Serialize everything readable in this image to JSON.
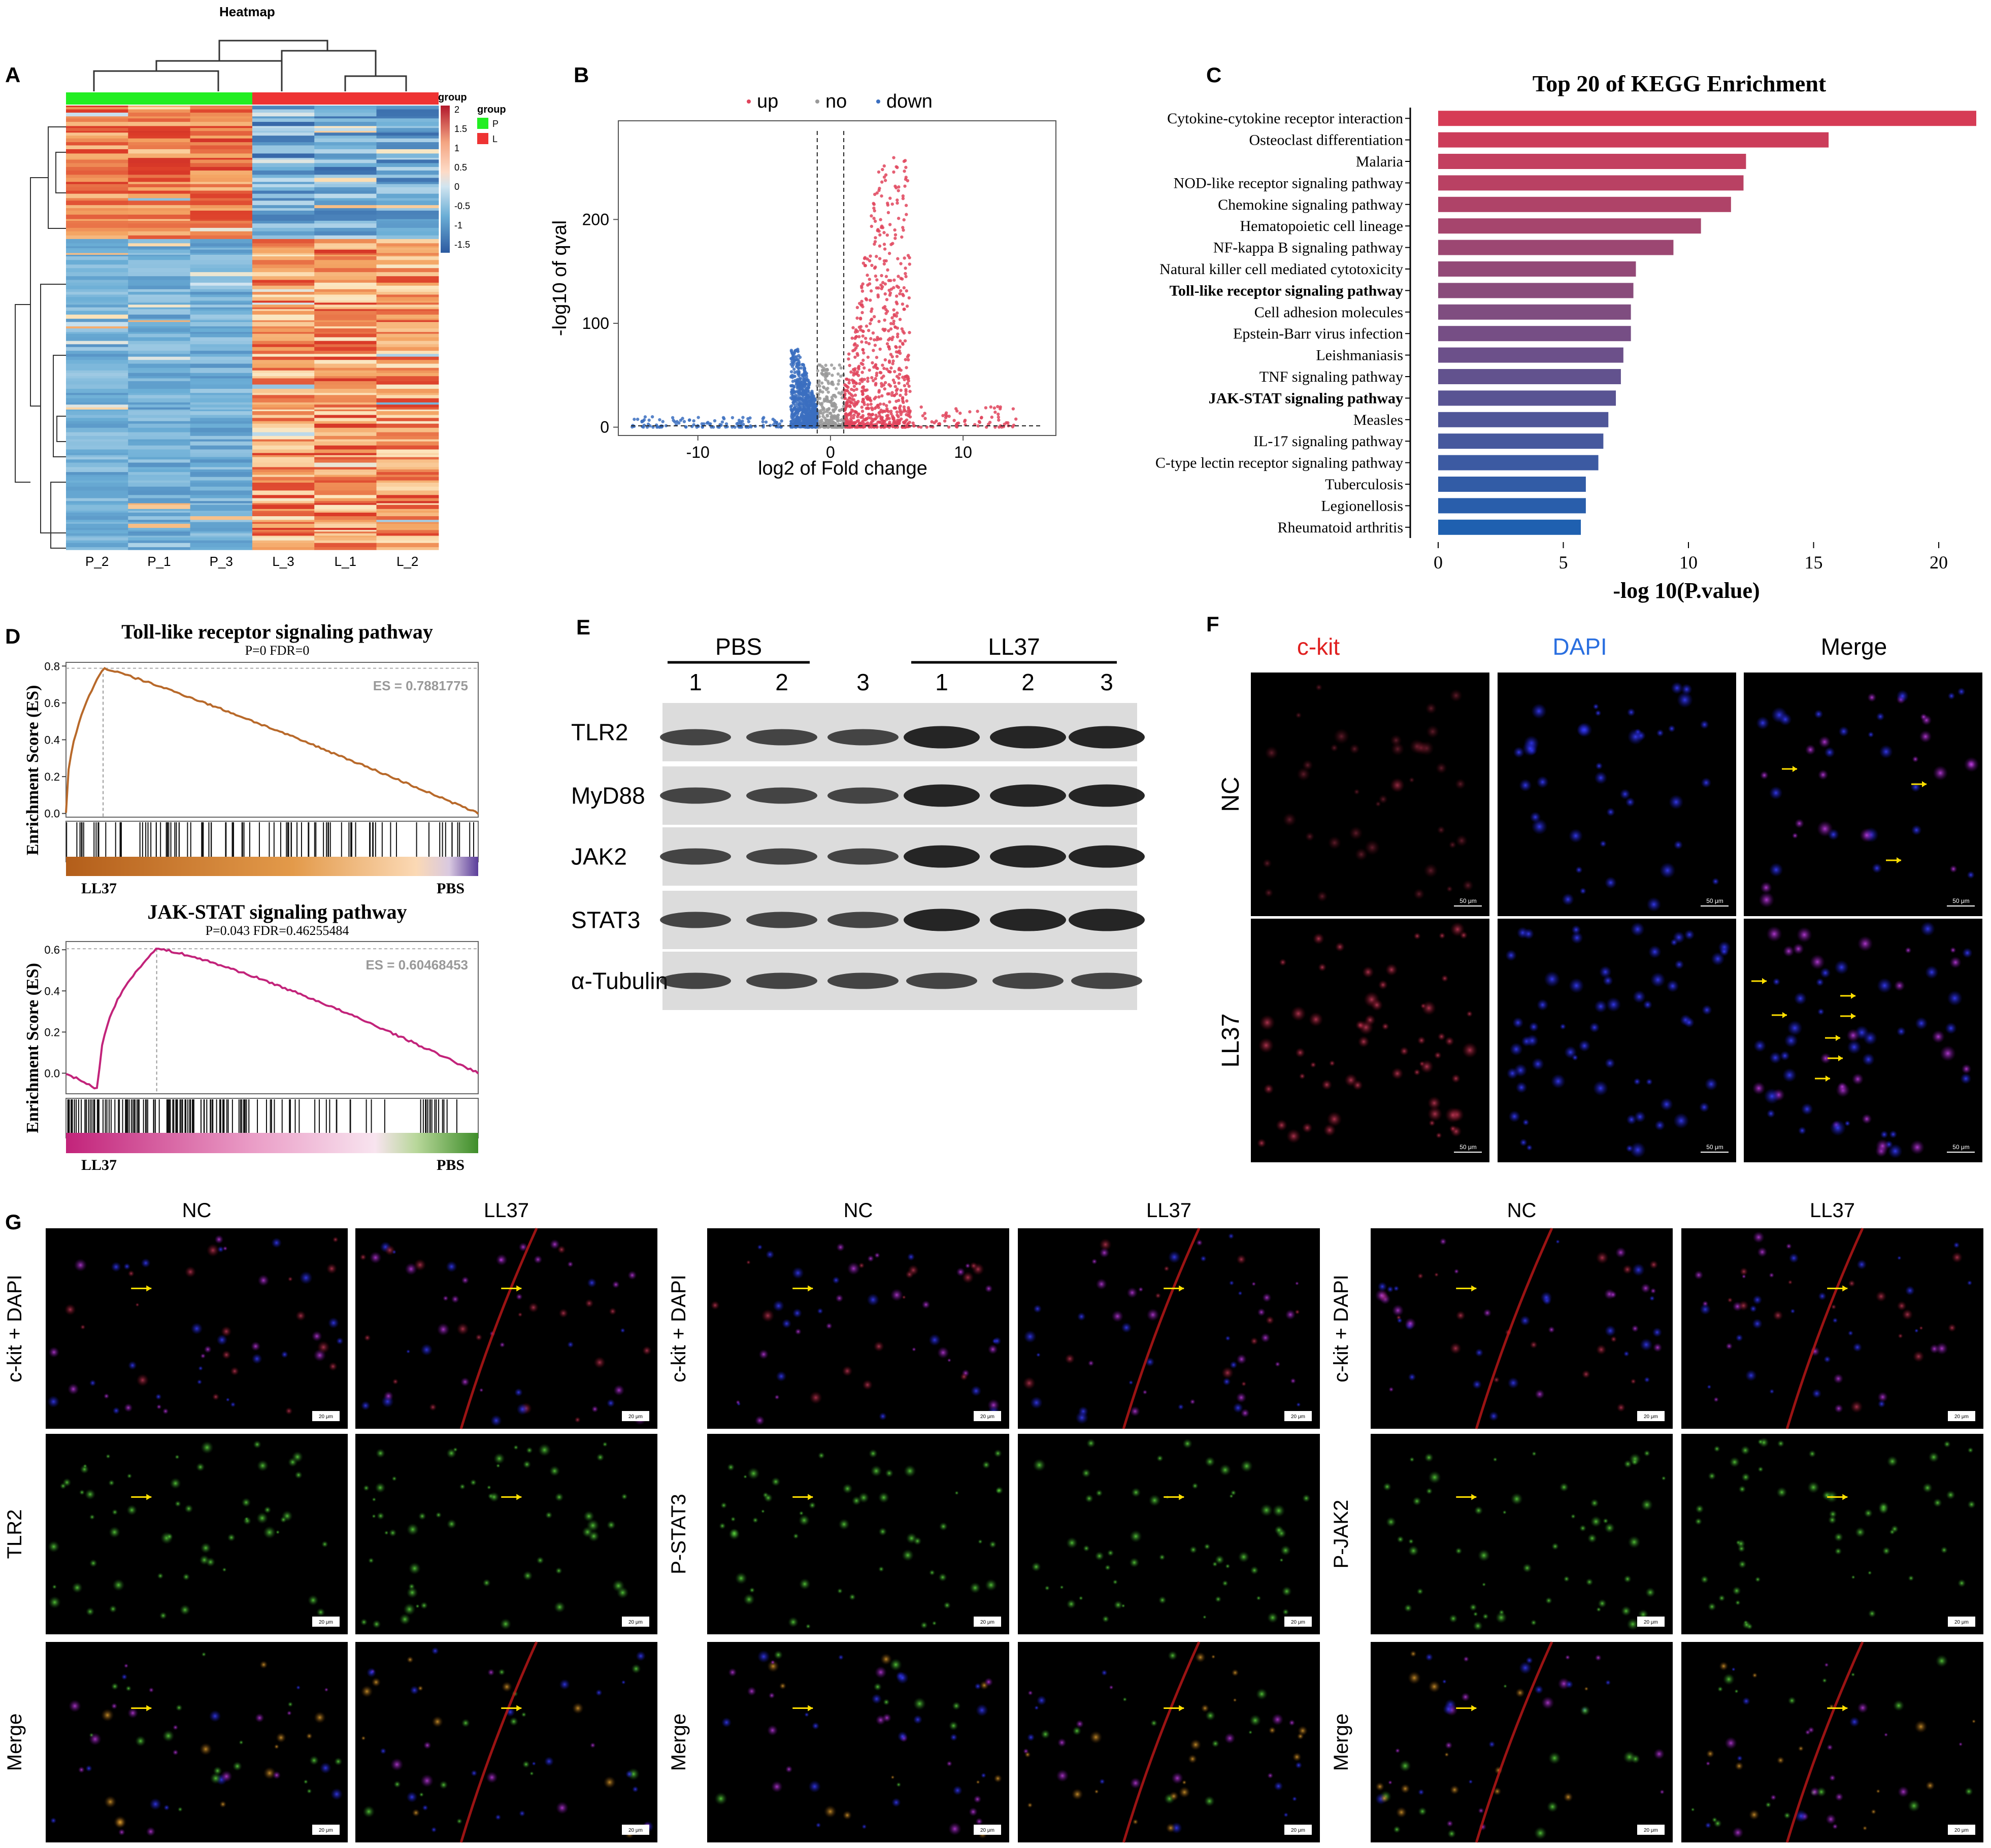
{
  "panels": {
    "A": {
      "letter": "A",
      "title": "Heatmap",
      "legend_title": "group",
      "legend_scale_ticks": [
        "2",
        "1.5",
        "1",
        "0.5",
        "0",
        "-0.5",
        "-1",
        "-1.5"
      ],
      "group_legend": [
        {
          "label": "P",
          "color": "#22ee22"
        },
        {
          "label": "L",
          "color": "#ee3333"
        }
      ],
      "columns": [
        "P_2",
        "P_1",
        "P_3",
        "L_3",
        "L_1",
        "L_2"
      ]
    },
    "B": {
      "letter": "B",
      "legend": [
        {
          "label": "up",
          "color": "#e0445c"
        },
        {
          "label": "no",
          "color": "#999999"
        },
        {
          "label": "down",
          "color": "#3b6fc0"
        }
      ]
    },
    "C": {
      "letter": "C"
    },
    "D": {
      "letter": "D",
      "plots": [
        {
          "title": "Toll-like receptor signaling pathway",
          "stats": "P=0   FDR=0",
          "es_label": "ES = 0.7881775",
          "left_label": "LL37",
          "right_label": "PBS",
          "ylabel": "Enrichment Score (ES)",
          "yticks": [
            "0.8",
            "0.6",
            "0.4",
            "0.2",
            "0.0"
          ],
          "color": "#b8692a"
        },
        {
          "title": "JAK-STAT signaling pathway",
          "stats": "P=0.043   FDR=0.46255484",
          "es_label": "ES = 0.60468453",
          "left_label": "LL37",
          "right_label": "PBS",
          "ylabel": "Enrichment Score (ES)",
          "yticks": [
            "0.6",
            "0.4",
            "0.2",
            "0.0"
          ],
          "color": "#c2237a"
        }
      ]
    },
    "E": {
      "letter": "E",
      "groups": [
        {
          "label": "PBS",
          "lanes": [
            "1",
            "2",
            "3"
          ]
        },
        {
          "label": "LL37",
          "lanes": [
            "1",
            "2",
            "3"
          ]
        }
      ],
      "blots": [
        "TLR2",
        "MyD88",
        "JAK2",
        "STAT3",
        "α-Tubulin"
      ]
    },
    "F": {
      "letter": "F",
      "columns": [
        {
          "label": "c-kit",
          "color": "#e02020"
        },
        {
          "label": "DAPI",
          "color": "#2a6fe0"
        },
        {
          "label": "Merge",
          "color": "#000000"
        }
      ],
      "rows": [
        "NC",
        "LL37"
      ],
      "scale_bar": "50 μm"
    },
    "G": {
      "letter": "G",
      "col_labels": [
        "NC",
        "LL37"
      ],
      "scale_bar": "20 μm",
      "sets": [
        {
          "rows": [
            "c-kit + DAPI",
            "TLR2",
            "Merge"
          ]
        },
        {
          "rows": [
            "c-kit + DAPI",
            "P-STAT3",
            "Merge"
          ]
        },
        {
          "rows": [
            "c-kit + DAPI",
            "P-JAK2",
            "Merge"
          ]
        }
      ]
    }
  },
  "chart_data": [
    {
      "type": "scatter",
      "panel": "B",
      "xlabel": "log2 of Fold change",
      "ylabel": "-log10 of qval",
      "xticks": [
        -10,
        0,
        10
      ],
      "yticks": [
        0,
        100,
        200
      ],
      "xlim": [
        -16,
        17
      ],
      "ylim": [
        -8,
        295
      ],
      "thresholds_x": [
        -1,
        1
      ],
      "threshold_y": 1.3,
      "series": [
        {
          "name": "up",
          "color": "#e0445c",
          "clusters": [
            {
              "x_range": [
                1,
                6
              ],
              "y_range": [
                0,
                260
              ]
            },
            {
              "x_range": [
                1,
                14
              ],
              "y_range": [
                0,
                20
              ]
            }
          ]
        },
        {
          "name": "no",
          "color": "#999999",
          "clusters": [
            {
              "x_range": [
                -1,
                1
              ],
              "y_range": [
                0,
                60
              ]
            }
          ]
        },
        {
          "name": "down",
          "color": "#3b6fc0",
          "clusters": [
            {
              "x_range": [
                -3,
                -1
              ],
              "y_range": [
                0,
                75
              ]
            },
            {
              "x_range": [
                -15,
                -3
              ],
              "y_range": [
                0,
                10
              ]
            }
          ]
        }
      ]
    },
    {
      "type": "bar",
      "panel": "C",
      "orientation": "horizontal",
      "title": "Top  20  of  KEGG  Enrichment",
      "xlabel": "-log 10(P.value)",
      "xticks": [
        0,
        5,
        10,
        15,
        20
      ],
      "xlim": [
        0,
        21.5
      ],
      "categories": [
        "Cytokine-cytokine receptor interaction",
        "Osteoclast differentiation",
        "Malaria",
        "NOD-like receptor signaling pathway",
        "Chemokine signaling pathway",
        "Hematopoietic cell lineage",
        "NF-kappa B signaling pathway",
        "Natural killer cell mediated cytotoxicity",
        "Toll-like receptor signaling pathway",
        "Cell adhesion molecules",
        "Epstein-Barr virus infection",
        "Leishmaniasis",
        "TNF signaling pathway",
        "JAK-STAT signaling pathway",
        "Measles",
        "IL-17 signaling pathway",
        "C-type lectin receptor signaling pathway",
        "Tuberculosis",
        "Legionellosis",
        "Rheumatoid arthritis"
      ],
      "bold_categories": [
        "Toll-like receptor signaling pathway",
        "JAK-STAT signaling pathway"
      ],
      "values": [
        21.5,
        15.6,
        12.3,
        12.2,
        11.7,
        10.5,
        9.4,
        7.9,
        7.8,
        7.7,
        7.7,
        7.4,
        7.3,
        7.1,
        6.8,
        6.6,
        6.4,
        5.9,
        5.9,
        5.7
      ],
      "color_start": "#d63b55",
      "color_end": "#1f60b0"
    }
  ]
}
